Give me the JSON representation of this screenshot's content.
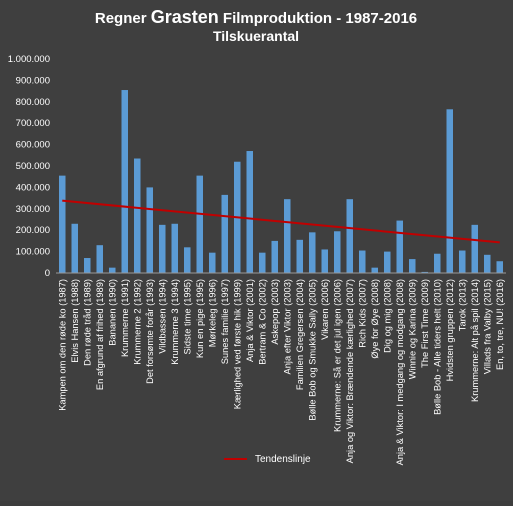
{
  "chart_data": {
    "type": "bar",
    "title_prefix": "Regner ",
    "title_emphasis": "Grasten",
    "title_suffix": " Filmproduktion - 1987-2016",
    "subtitle": "Tilskuerantal",
    "xlabel": "",
    "ylabel": "",
    "ylim": [
      0,
      1000000
    ],
    "yticks": [
      0,
      100000,
      200000,
      300000,
      400000,
      500000,
      600000,
      700000,
      800000,
      900000,
      1000000
    ],
    "ytick_labels": [
      "0",
      "100.000",
      "200.000",
      "300.000",
      "400.000",
      "500.000",
      "600.000",
      "700.000",
      "800.000",
      "900.000",
      "1.000.000"
    ],
    "grid": false,
    "legend_position": "bottom",
    "colors": {
      "bar": "#5b9bd5",
      "trend": "#c00000",
      "background": "#3f3f3f",
      "text": "#ffffff"
    },
    "categories": [
      "Kampen om den røde ko (1987)",
      "Elvis Hansen (1988)",
      "Den røde tråd (1989)",
      "En afgrund af frihed (1989)",
      "Bananen (1990)",
      "Krummerne (1991)",
      "Krummerne 2 (1992)",
      "Det forsømte forår (1993)",
      "Vildbassen (1994)",
      "Krummerne 3 (1994)",
      "Sidste time (1995)",
      "Kun en pige (1995)",
      "Mørkeleg (1996)",
      "Sunes familie (1997)",
      "Kærlighed ved første hik (1999)",
      "Anja & Viktor (2001)",
      "Bertram & Co (2002)",
      "Askepop (2003)",
      "Anja efter Viktor (2003)",
      "Familien Gregersen (2004)",
      "Bølle Bob og Smukke Sally (2005)",
      "Vikaren (2006)",
      "Krummerne: Så er det jul igen (2006)",
      "Anja og Viktor: Brændende kærlighed (2007)",
      "Rich Kids (2007)",
      "Øye for Øye (2008)",
      "Dig og mig (2008)",
      "Anja & Viktor: I medgang og modgang (2008)",
      "Winnie og Karina (2009)",
      "The First Time (2009)",
      "Bølle Bob - Alle tiders helt (2010)",
      "Hvidsten gruppen (2012)",
      "Tarok (2013)",
      "Krummerne: Alt på spil (2014)",
      "Villads fra Valby (2015)",
      "En, to, tre, NU! (2016)"
    ],
    "series": [
      {
        "name": "",
        "values": [
          455000,
          230000,
          70000,
          130000,
          25000,
          855000,
          535000,
          400000,
          225000,
          230000,
          120000,
          455000,
          95000,
          365000,
          520000,
          570000,
          95000,
          150000,
          345000,
          155000,
          190000,
          110000,
          195000,
          345000,
          105000,
          25000,
          100000,
          245000,
          65000,
          5000,
          90000,
          765000,
          105000,
          225000,
          85000,
          55000
        ]
      }
    ],
    "trendline": {
      "name": "Tendenslinje",
      "start": 338000,
      "end": 143000
    }
  }
}
